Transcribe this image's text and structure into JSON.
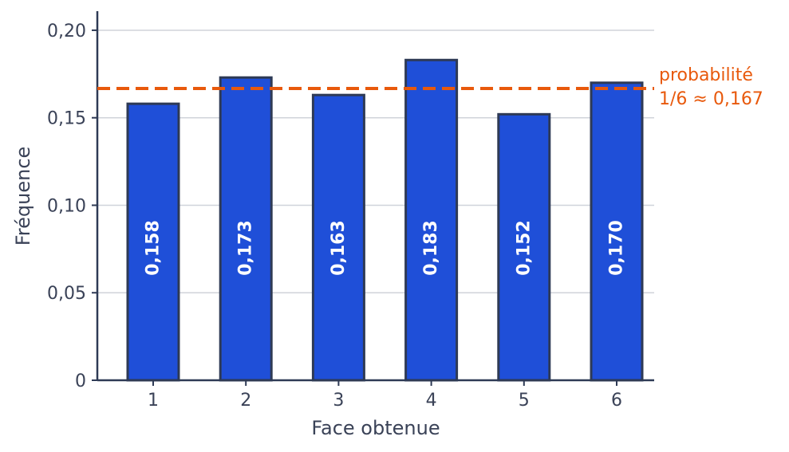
{
  "chart_data": {
    "type": "bar",
    "categories": [
      "1",
      "2",
      "3",
      "4",
      "5",
      "6"
    ],
    "values": [
      0.158,
      0.173,
      0.163,
      0.183,
      0.152,
      0.17
    ],
    "value_labels": [
      "0,158",
      "0,173",
      "0,163",
      "0,183",
      "0,152",
      "0,170"
    ],
    "xlabel": "Face obtenue",
    "ylabel": "Fréquence",
    "ylim": [
      0,
      0.21
    ],
    "yticks": [
      0,
      0.05,
      0.1,
      0.15,
      0.2
    ],
    "ytick_labels": [
      "0",
      "0,05",
      "0,10",
      "0,15",
      "0,20"
    ],
    "grid": "horizontal",
    "reference_line": {
      "value": 0.1667,
      "label_line1": "probabilité",
      "label_line2": "1/6 ≈ 0,167",
      "style": "dashed"
    },
    "colors": {
      "bar": "#1f4fd8",
      "bar_edge": "#2e3a55",
      "reference": "#e8590c",
      "grid": "#d0d3da",
      "axis": "#2e3a55",
      "text": "#3a4257"
    }
  }
}
